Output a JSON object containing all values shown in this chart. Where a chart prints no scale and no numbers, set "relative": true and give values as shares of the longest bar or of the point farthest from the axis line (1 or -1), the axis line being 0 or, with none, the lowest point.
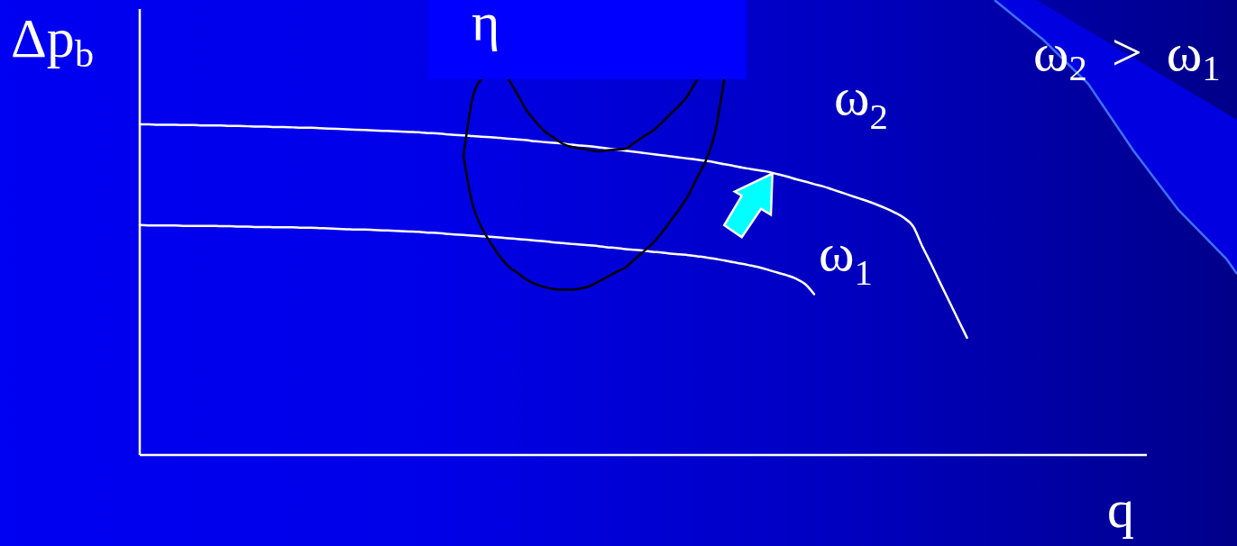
{
  "chart_data": {
    "type": "line",
    "relative": true,
    "ylabel": "Δp$_{b}$",
    "xlabel": "q",
    "annotations": [
      "η",
      "ω$_{2}$ > ω$_{1}$"
    ],
    "categories": [
      null,
      null,
      null,
      null,
      null,
      null,
      null,
      null,
      null,
      null,
      null,
      null,
      null,
      null,
      null,
      null,
      null,
      null,
      null,
      null,
      null,
      null,
      null,
      null,
      null,
      null,
      null,
      null,
      null,
      null,
      null,
      null,
      null,
      null,
      null,
      null,
      null,
      null,
      null,
      null,
      null,
      null,
      null,
      null,
      null,
      null,
      null,
      null,
      null,
      null,
      null,
      null,
      null,
      null,
      null,
      null,
      null,
      null,
      null,
      null,
      null,
      null,
      null,
      null,
      null,
      null,
      null,
      null,
      null,
      null,
      null,
      null,
      null,
      null,
      null,
      null,
      null,
      null,
      null,
      null,
      null,
      null,
      null,
      null,
      null,
      null,
      null,
      null,
      null,
      null,
      null,
      null,
      null,
      null,
      null,
      null,
      null,
      null,
      null,
      null,
      null,
      null,
      null,
      null,
      null,
      null,
      null,
      null,
      null,
      null,
      null,
      null,
      null
    ],
    "series": [
      {
        "name": "ω$_{2}$",
        "color": "#ffffff",
        "values": [
          0.88,
          0.88,
          0.879,
          0.879,
          0.879,
          0.878,
          0.878,
          0.877,
          0.877,
          0.877,
          0.876,
          0.876,
          0.875,
          0.874,
          0.874,
          0.873,
          0.873,
          0.872,
          0.871,
          0.871,
          0.87,
          0.869,
          0.868,
          0.867,
          0.866,
          0.865,
          0.864,
          0.863,
          0.862,
          0.861,
          0.86,
          0.859,
          0.857,
          0.856,
          0.854,
          0.852,
          0.851,
          0.849,
          0.847,
          0.846,
          0.844,
          0.842,
          0.84,
          0.838,
          0.835,
          0.833,
          0.831,
          0.829,
          0.826,
          0.824,
          0.822,
          0.819,
          0.816,
          0.813,
          0.81,
          0.807,
          0.804,
          0.801,
          0.798,
          0.795,
          0.792,
          0.789,
          0.786,
          0.783,
          0.779,
          0.774,
          0.77,
          0.765,
          0.761,
          0.757,
          0.753,
          0.747,
          0.741,
          0.734,
          0.728,
          0.721,
          0.715,
          0.707,
          0.699,
          0.691,
          0.683,
          0.675,
          0.666,
          0.656,
          0.645,
          0.631,
          0.609,
          0.557,
          0.509,
          0.459,
          0.41,
          0.361,
          0.312,
          null,
          null,
          null,
          null,
          null,
          null,
          null,
          null,
          null,
          null,
          null,
          null,
          null,
          null,
          null,
          null,
          null,
          null,
          null,
          null
        ]
      },
      {
        "name": "ω$_{1}$",
        "color": "#ffffff",
        "values": [
          0.612,
          0.611,
          0.611,
          0.611,
          0.611,
          0.61,
          0.61,
          0.61,
          0.61,
          0.609,
          0.609,
          0.608,
          0.608,
          0.607,
          0.607,
          0.606,
          0.606,
          0.606,
          0.605,
          0.605,
          0.604,
          0.603,
          0.602,
          0.601,
          0.6,
          0.6,
          0.599,
          0.598,
          0.597,
          0.596,
          0.595,
          0.594,
          0.592,
          0.591,
          0.589,
          0.587,
          0.586,
          0.584,
          0.582,
          0.581,
          0.579,
          0.577,
          0.575,
          0.573,
          0.571,
          0.569,
          0.566,
          0.564,
          0.562,
          0.56,
          0.558,
          0.556,
          0.553,
          0.551,
          0.548,
          0.546,
          0.544,
          0.541,
          0.539,
          0.536,
          0.534,
          0.532,
          0.529,
          0.526,
          0.522,
          0.518,
          0.513,
          0.509,
          0.504,
          0.499,
          0.492,
          0.485,
          0.478,
          0.469,
          0.455,
          0.428,
          null,
          null,
          null,
          null,
          null,
          null,
          null,
          null,
          null,
          null,
          null,
          null,
          null,
          null,
          null,
          null,
          null,
          null,
          null,
          null,
          null,
          null,
          null,
          null,
          null,
          null,
          null,
          null,
          null,
          null,
          null,
          null,
          null,
          null,
          null,
          null,
          null
        ]
      },
      {
        "color": "#000000",
        "values": [
          null,
          null,
          null,
          null,
          null,
          null,
          null,
          null,
          null,
          null,
          null,
          null,
          null,
          null,
          null,
          null,
          null,
          null,
          null,
          null,
          null,
          null,
          null,
          null,
          null,
          null,
          null,
          null,
          null,
          null,
          null,
          null,
          null,
          null,
          null,
          null,
          0.796,
          0.668,
          0.607,
          0.565,
          0.53,
          0.502,
          0.485,
          0.467,
          0.455,
          0.447,
          0.442,
          0.44,
          0.44,
          0.443,
          0.449,
          0.461,
          0.474,
          0.487,
          0.499,
          0.52,
          0.541,
          0.562,
          0.59,
          0.622,
          0.654,
          0.691,
          0.739,
          0.786,
          0.861,
          1,
          null,
          null,
          null,
          null,
          null,
          null,
          null,
          null,
          null,
          null,
          null,
          null,
          null,
          null,
          null,
          null,
          null,
          null,
          null,
          null,
          null,
          null,
          null,
          null,
          null,
          null,
          null,
          null,
          null,
          null,
          null,
          null,
          null,
          null,
          null,
          null,
          null,
          null,
          null,
          null,
          null,
          null,
          null,
          null,
          null,
          null,
          null
        ]
      },
      {
        "color": "#000000",
        "values": [
          null,
          null,
          null,
          null,
          null,
          null,
          null,
          null,
          null,
          null,
          null,
          null,
          null,
          null,
          null,
          null,
          null,
          null,
          null,
          null,
          null,
          null,
          null,
          null,
          null,
          null,
          null,
          null,
          null,
          null,
          null,
          null,
          null,
          null,
          null,
          null,
          0.796,
          0.948,
          1,
          null,
          null,
          null,
          null,
          null,
          null,
          null,
          null,
          null,
          null,
          null,
          null,
          null,
          null,
          null,
          null,
          null,
          null,
          null,
          null,
          null,
          null,
          null,
          null,
          null,
          null,
          null,
          null,
          null,
          null,
          null,
          null,
          null,
          null,
          null,
          null,
          null,
          null,
          null,
          null,
          null,
          null,
          null,
          null,
          null,
          null,
          null,
          null,
          null,
          null,
          null,
          null,
          null,
          null,
          null,
          null,
          null,
          null,
          null,
          null,
          null,
          null,
          null,
          null,
          null,
          null,
          null,
          null,
          null,
          null,
          null,
          null,
          null,
          null
        ]
      },
      {
        "color": "#000000",
        "values": [
          null,
          null,
          null,
          null,
          null,
          null,
          null,
          null,
          null,
          null,
          null,
          null,
          null,
          null,
          null,
          null,
          null,
          null,
          null,
          null,
          null,
          null,
          null,
          null,
          null,
          null,
          null,
          null,
          null,
          null,
          null,
          null,
          null,
          null,
          null,
          null,
          null,
          null,
          null,
          null,
          null,
          1,
          0.96,
          0.918,
          0.888,
          0.862,
          0.845,
          0.829,
          0.82,
          0.816,
          0.812,
          0.808,
          0.811,
          0.813,
          0.815,
          0.831,
          0.847,
          0.862,
          0.883,
          0.907,
          0.93,
          0.959,
          1,
          null,
          null,
          null,
          null,
          null,
          null,
          null,
          null,
          null,
          null,
          null,
          null,
          null,
          null,
          null,
          null,
          null,
          null,
          null,
          null,
          null,
          null,
          null,
          null,
          null,
          null,
          null,
          null,
          null,
          null,
          null,
          null,
          null,
          null,
          null,
          null,
          null,
          null,
          null,
          null,
          null,
          null,
          null,
          null,
          null,
          null,
          null,
          null,
          null,
          null
        ]
      }
    ]
  }
}
